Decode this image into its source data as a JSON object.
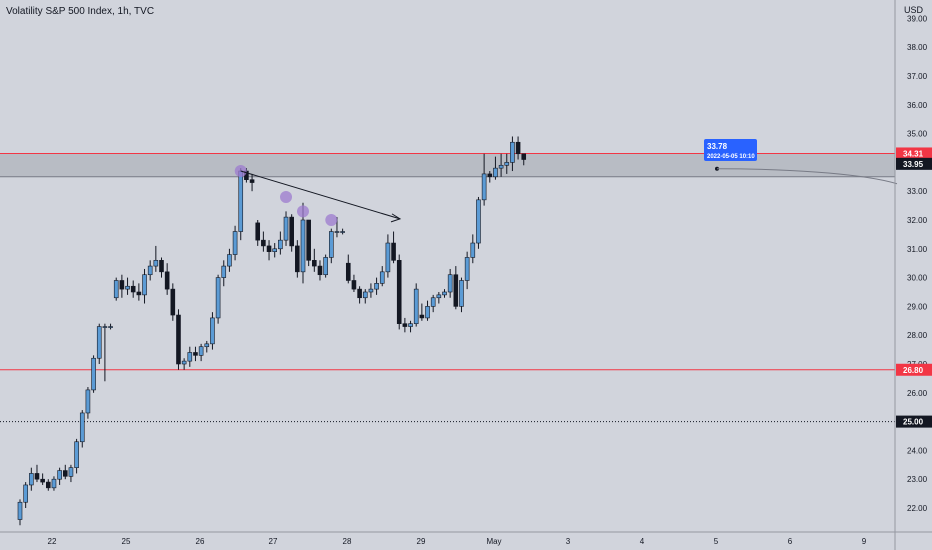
{
  "header": {
    "title": "Volatility S&P 500 Index, 1h, TVC",
    "currency": "USD"
  },
  "colors": {
    "background": "#d1d4dc",
    "up_candle": "#5b9bd5",
    "down_candle": "#131722",
    "level_line": "#f23645",
    "zone_fill": "#b2b5be",
    "callout": "#2962ff",
    "peak_marker": "#9c7bcf"
  },
  "chart_data": {
    "type": "candlestick",
    "title": "Volatility S&P 500 Index, 1h, TVC",
    "ylabel": "USD",
    "ylim": [
      21.0,
      39.6
    ],
    "y_ticks": [
      "22.00",
      "23.00",
      "24.00",
      "25.00",
      "26.00",
      "27.00",
      "28.00",
      "29.00",
      "30.00",
      "31.00",
      "32.00",
      "33.00",
      "34.00",
      "35.00",
      "36.00",
      "37.00",
      "38.00",
      "39.00"
    ],
    "x_ticks": [
      "22",
      "25",
      "26",
      "27",
      "28",
      "29",
      "May",
      "3",
      "4",
      "5",
      "6",
      "9"
    ],
    "candles_ohlc": [
      [
        21.6,
        22.3,
        21.4,
        22.2
      ],
      [
        22.2,
        22.9,
        22.0,
        22.8
      ],
      [
        22.8,
        23.4,
        22.6,
        23.2
      ],
      [
        23.2,
        23.5,
        22.9,
        23.0
      ],
      [
        23.0,
        23.2,
        22.8,
        22.9
      ],
      [
        22.9,
        23.0,
        22.6,
        22.7
      ],
      [
        22.7,
        23.1,
        22.6,
        23.0
      ],
      [
        23.0,
        23.4,
        22.8,
        23.3
      ],
      [
        23.3,
        23.5,
        23.0,
        23.1
      ],
      [
        23.1,
        23.5,
        22.9,
        23.4
      ],
      [
        23.4,
        24.4,
        23.2,
        24.3
      ],
      [
        24.3,
        25.4,
        24.1,
        25.3
      ],
      [
        25.3,
        26.2,
        25.1,
        26.1
      ],
      [
        26.1,
        27.3,
        26.0,
        27.2
      ],
      [
        27.2,
        28.4,
        27.0,
        28.3
      ],
      [
        28.3,
        28.4,
        26.4,
        28.3
      ],
      [
        28.3,
        28.4,
        28.2,
        28.3
      ],
      [
        29.3,
        30.0,
        29.2,
        29.9
      ],
      [
        29.9,
        30.1,
        29.3,
        29.6
      ],
      [
        29.6,
        30.0,
        29.4,
        29.7
      ],
      [
        29.7,
        29.9,
        29.3,
        29.5
      ],
      [
        29.5,
        29.8,
        29.2,
        29.4
      ],
      [
        29.4,
        30.3,
        29.1,
        30.1
      ],
      [
        30.1,
        30.6,
        29.9,
        30.4
      ],
      [
        30.4,
        31.1,
        30.2,
        30.6
      ],
      [
        30.6,
        30.7,
        30.0,
        30.2
      ],
      [
        30.2,
        30.5,
        29.4,
        29.6
      ],
      [
        29.6,
        29.8,
        28.5,
        28.7
      ],
      [
        28.7,
        28.9,
        26.8,
        27.0
      ],
      [
        27.0,
        27.2,
        26.8,
        27.1
      ],
      [
        27.1,
        27.6,
        26.9,
        27.4
      ],
      [
        27.4,
        27.6,
        27.1,
        27.3
      ],
      [
        27.3,
        27.7,
        27.1,
        27.6
      ],
      [
        27.6,
        27.8,
        27.4,
        27.7
      ],
      [
        27.7,
        28.8,
        27.5,
        28.6
      ],
      [
        28.6,
        30.1,
        28.4,
        30.0
      ],
      [
        30.0,
        30.6,
        29.7,
        30.4
      ],
      [
        30.4,
        31.0,
        30.2,
        30.8
      ],
      [
        30.8,
        31.8,
        30.6,
        31.6
      ],
      [
        31.6,
        33.8,
        31.3,
        33.7
      ],
      [
        33.7,
        33.8,
        33.3,
        33.4
      ],
      [
        33.4,
        33.6,
        33.0,
        33.3
      ],
      [
        31.9,
        32.0,
        31.1,
        31.3
      ],
      [
        31.3,
        31.6,
        30.9,
        31.1
      ],
      [
        31.1,
        31.3,
        30.6,
        30.9
      ],
      [
        30.9,
        31.2,
        30.7,
        31.0
      ],
      [
        31.0,
        31.6,
        30.8,
        31.3
      ],
      [
        31.3,
        32.3,
        31.1,
        32.1
      ],
      [
        32.1,
        32.2,
        30.9,
        31.1
      ],
      [
        31.1,
        31.3,
        30.0,
        30.2
      ],
      [
        30.2,
        32.6,
        29.8,
        32.0
      ],
      [
        32.0,
        32.0,
        30.4,
        30.6
      ],
      [
        30.6,
        31.0,
        30.2,
        30.4
      ],
      [
        30.4,
        30.6,
        29.9,
        30.1
      ],
      [
        30.1,
        30.8,
        30.0,
        30.7
      ],
      [
        30.7,
        31.7,
        30.5,
        31.6
      ],
      [
        31.6,
        32.1,
        31.4,
        31.6
      ],
      [
        31.6,
        31.7,
        31.5,
        31.6
      ],
      [
        30.5,
        30.8,
        29.8,
        29.9
      ],
      [
        29.9,
        30.1,
        29.5,
        29.6
      ],
      [
        29.6,
        29.7,
        29.1,
        29.3
      ],
      [
        29.3,
        29.6,
        29.1,
        29.5
      ],
      [
        29.5,
        29.8,
        29.3,
        29.6
      ],
      [
        29.6,
        30.0,
        29.4,
        29.8
      ],
      [
        29.8,
        30.4,
        29.7,
        30.2
      ],
      [
        30.2,
        31.5,
        30.0,
        31.2
      ],
      [
        31.2,
        31.6,
        30.5,
        30.6
      ],
      [
        30.6,
        30.8,
        28.2,
        28.4
      ],
      [
        28.4,
        28.6,
        28.1,
        28.3
      ],
      [
        28.3,
        28.5,
        28.1,
        28.4
      ],
      [
        28.4,
        29.8,
        28.3,
        29.6
      ],
      [
        28.7,
        29.1,
        28.5,
        28.6
      ],
      [
        28.6,
        29.2,
        28.5,
        29.0
      ],
      [
        29.0,
        29.4,
        28.8,
        29.3
      ],
      [
        29.3,
        29.5,
        29.1,
        29.4
      ],
      [
        29.4,
        29.6,
        29.3,
        29.5
      ],
      [
        29.5,
        30.3,
        29.3,
        30.1
      ],
      [
        30.1,
        30.4,
        28.9,
        29.0
      ],
      [
        29.0,
        30.0,
        28.8,
        29.9
      ],
      [
        29.9,
        30.9,
        29.6,
        30.7
      ],
      [
        30.7,
        31.5,
        30.5,
        31.2
      ],
      [
        31.2,
        32.8,
        31.0,
        32.7
      ],
      [
        32.7,
        34.3,
        32.5,
        33.6
      ],
      [
        33.6,
        33.7,
        33.3,
        33.5
      ],
      [
        33.5,
        34.2,
        33.4,
        33.8
      ],
      [
        33.8,
        34.3,
        33.5,
        33.9
      ],
      [
        33.9,
        34.3,
        33.6,
        34.0
      ],
      [
        34.0,
        34.9,
        33.7,
        34.7
      ],
      [
        34.7,
        34.9,
        34.1,
        34.3
      ],
      [
        34.3,
        34.3,
        33.9,
        34.1
      ]
    ],
    "horizontal_levels": [
      {
        "price": 34.31,
        "label": "34.31"
      },
      {
        "price": 26.8,
        "label": "26.80"
      }
    ],
    "zone": [
      33.5,
      34.31
    ],
    "current_price": {
      "price": 33.95,
      "label": "33.95"
    },
    "dotted_level": {
      "price": 25.0,
      "label": "25.00"
    },
    "peak_markers": [
      33.7,
      32.8,
      32.3,
      32.0
    ],
    "trendline": {
      "from_price": 33.7,
      "to_price": 31.9
    },
    "annotation": {
      "price_label": "33.78",
      "date_label": "2022-05-05 10:10"
    }
  }
}
